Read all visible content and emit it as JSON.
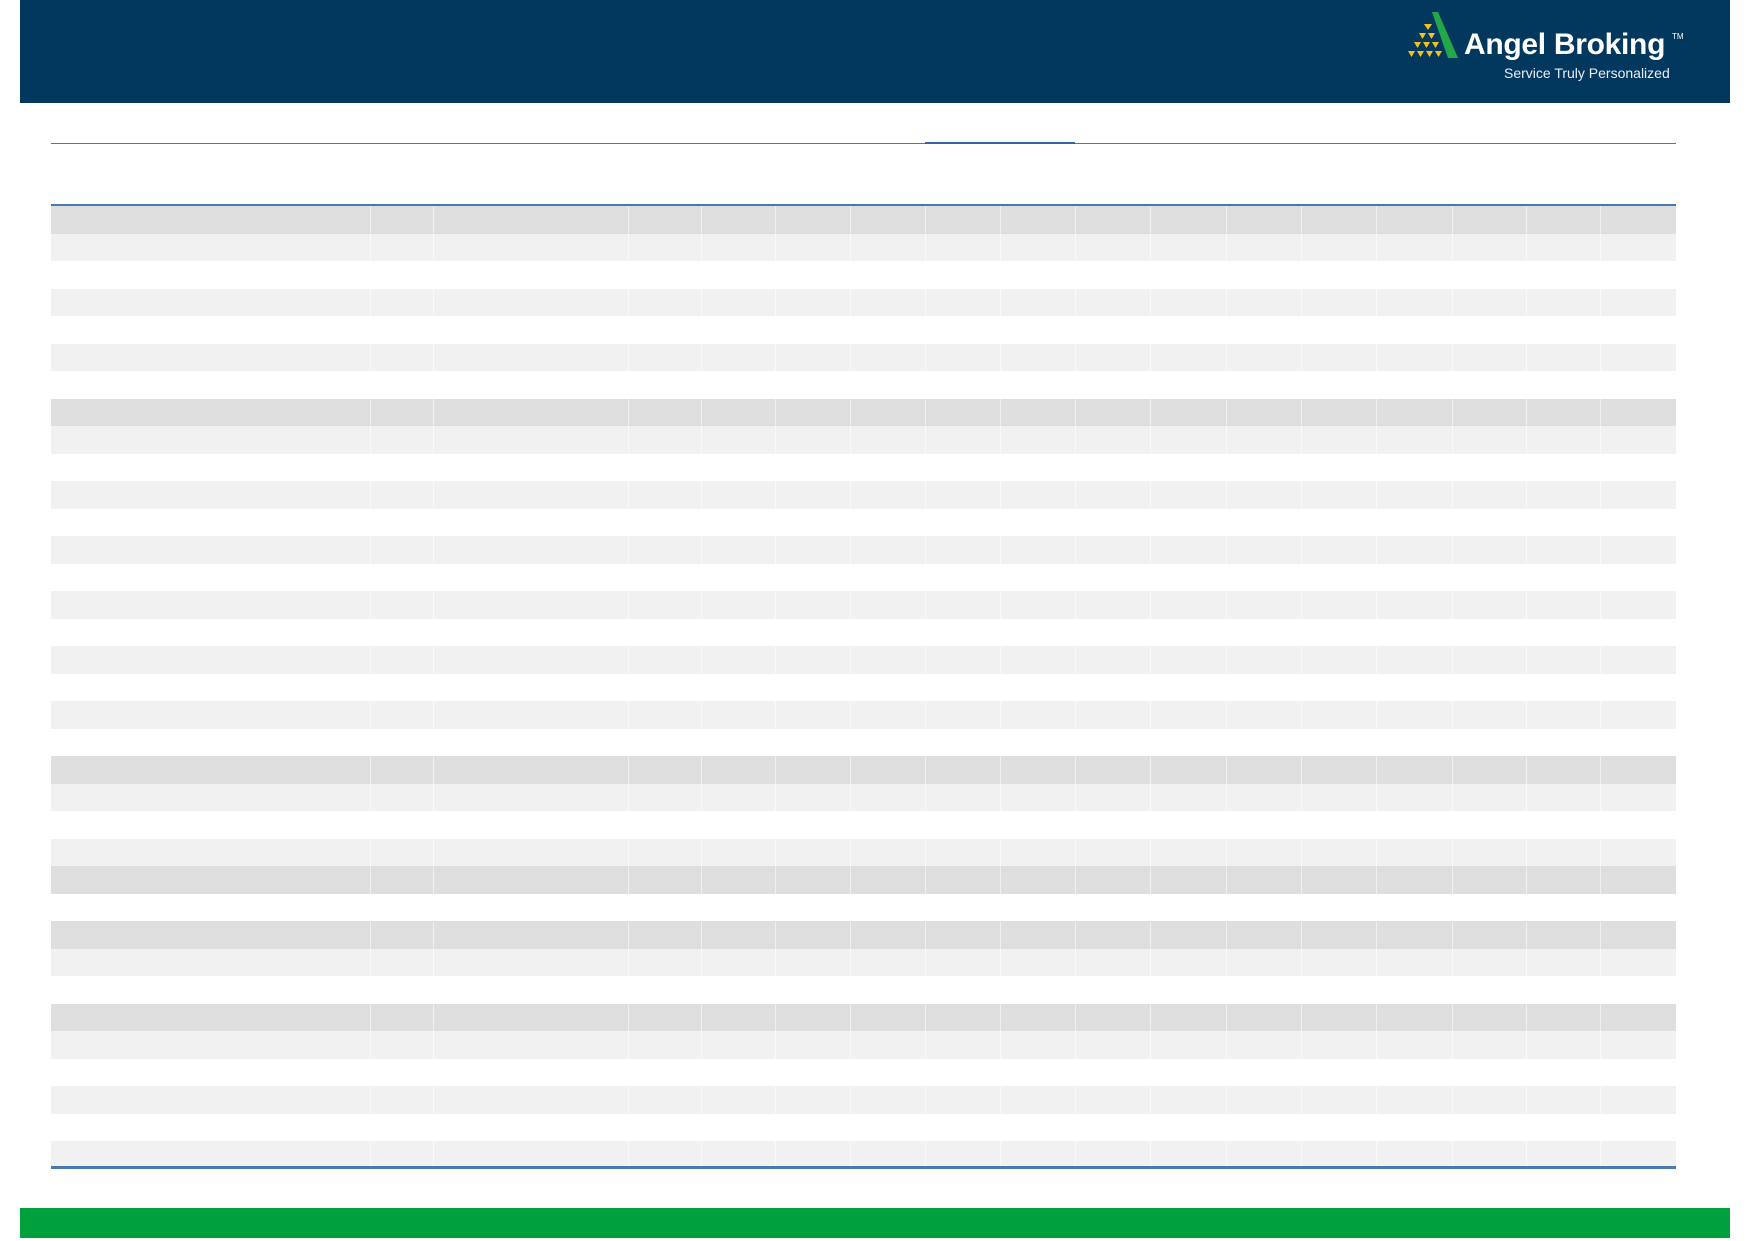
{
  "brand": {
    "name": "Angel Broking",
    "trademark": "TM",
    "tagline": "Service Truly Personalized",
    "colors": {
      "header": "#02375e",
      "footer": "#00a03c",
      "rule": "#4a78b5",
      "logo_green": "#22a84a",
      "logo_gold": "#f2c21b"
    }
  },
  "table": {
    "row_shading": [
      "D",
      "L",
      "W",
      "L",
      "W",
      "L",
      "W",
      "D",
      "L",
      "W",
      "L",
      "W",
      "L",
      "W",
      "L",
      "W",
      "L",
      "W",
      "L",
      "W",
      "D",
      "L",
      "W",
      "L",
      "D",
      "W",
      "D",
      "L",
      "W",
      "D",
      "L",
      "W",
      "L",
      "W",
      "L"
    ]
  }
}
